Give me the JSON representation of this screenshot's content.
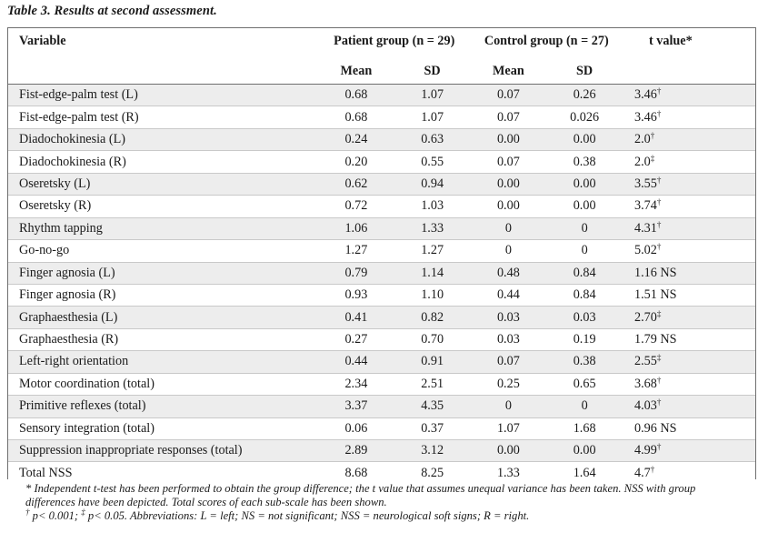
{
  "caption": "Table 3. Results at second assessment.",
  "header": {
    "variable": "Variable",
    "patient_group": "Patient group (n = 29)",
    "control_group": "Control group  (n = 27)",
    "t_value": "t value*",
    "mean": "Mean",
    "sd": "SD"
  },
  "rows": [
    {
      "variable": "Fist-edge-palm test (L)",
      "p_mean": "0.68",
      "p_sd": "1.07",
      "c_mean": "0.07",
      "c_sd": "0.26",
      "t": "3.46",
      "mark": "†"
    },
    {
      "variable": "Fist-edge-palm test (R)",
      "p_mean": "0.68",
      "p_sd": "1.07",
      "c_mean": "0.07",
      "c_sd": "0.026",
      "t": "3.46",
      "mark": "†"
    },
    {
      "variable": "Diadochokinesia (L)",
      "p_mean": "0.24",
      "p_sd": "0.63",
      "c_mean": "0.00",
      "c_sd": "0.00",
      "t": "2.0",
      "mark": "†"
    },
    {
      "variable": "Diadochokinesia (R)",
      "p_mean": "0.20",
      "p_sd": "0.55",
      "c_mean": "0.07",
      "c_sd": "0.38",
      "t": "2.0",
      "mark": "‡"
    },
    {
      "variable": "Oseretsky (L)",
      "p_mean": "0.62",
      "p_sd": "0.94",
      "c_mean": "0.00",
      "c_sd": "0.00",
      "t": "3.55",
      "mark": "†"
    },
    {
      "variable": "Oseretsky (R)",
      "p_mean": "0.72",
      "p_sd": "1.03",
      "c_mean": "0.00",
      "c_sd": "0.00",
      "t": "3.74",
      "mark": "†"
    },
    {
      "variable": "Rhythm tapping",
      "p_mean": "1.06",
      "p_sd": "1.33",
      "c_mean": "0",
      "c_sd": "0",
      "t": "4.31",
      "mark": "†"
    },
    {
      "variable": "Go-no-go",
      "p_mean": "1.27",
      "p_sd": "1.27",
      "c_mean": "0",
      "c_sd": "0",
      "t": "5.02",
      "mark": "†"
    },
    {
      "variable": "Finger agnosia (L)",
      "p_mean": "0.79",
      "p_sd": "1.14",
      "c_mean": "0.48",
      "c_sd": "0.84",
      "t": "1.16 NS",
      "mark": ""
    },
    {
      "variable": "Finger agnosia (R)",
      "p_mean": "0.93",
      "p_sd": "1.10",
      "c_mean": "0.44",
      "c_sd": "0.84",
      "t": "1.51 NS",
      "mark": ""
    },
    {
      "variable": "Graphaesthesia (L)",
      "p_mean": "0.41",
      "p_sd": "0.82",
      "c_mean": "0.03",
      "c_sd": "0.03",
      "t": "2.70",
      "mark": "‡"
    },
    {
      "variable": "Graphaesthesia (R)",
      "p_mean": "0.27",
      "p_sd": "0.70",
      "c_mean": "0.03",
      "c_sd": "0.19",
      "t": "1.79 NS",
      "mark": ""
    },
    {
      "variable": "Left-right orientation",
      "p_mean": "0.44",
      "p_sd": "0.91",
      "c_mean": "0.07",
      "c_sd": "0.38",
      "t": "2.55",
      "mark": "‡"
    },
    {
      "variable": "Motor coordination (total)",
      "p_mean": "2.34",
      "p_sd": "2.51",
      "c_mean": "0.25",
      "c_sd": "0.65",
      "t": "3.68",
      "mark": "†"
    },
    {
      "variable": "Primitive reflexes (total)",
      "p_mean": "3.37",
      "p_sd": "4.35",
      "c_mean": "0",
      "c_sd": "0",
      "t": "4.03",
      "mark": "†"
    },
    {
      "variable": "Sensory integration (total)",
      "p_mean": "0.06",
      "p_sd": "0.37",
      "c_mean": "1.07",
      "c_sd": "1.68",
      "t": "0.96 NS",
      "mark": ""
    },
    {
      "variable": "Suppression inappropriate responses (total)",
      "p_mean": "2.89",
      "p_sd": "3.12",
      "c_mean": "0.00",
      "c_sd": "0.00",
      "t": "4.99",
      "mark": "†"
    },
    {
      "variable": "Total NSS",
      "p_mean": "8.68",
      "p_sd": "8.25",
      "c_mean": "1.33",
      "c_sd": "1.64",
      "t": "4.7",
      "mark": "†"
    }
  ],
  "footnotes": {
    "line1": "* Independent t-test has been performed to obtain the group difference; the t value that assumes unequal variance has been taken. NSS with group",
    "line2": "differences have been depicted. Total scores of each sub-scale has been shown.",
    "line3_mark1": "†",
    "line3_a": " p< 0.001; ",
    "line3_mark2": "‡",
    "line3_b": " p< 0.05. Abbreviations: L = left; NS = not significant; NSS = neurological soft signs; R = right."
  }
}
